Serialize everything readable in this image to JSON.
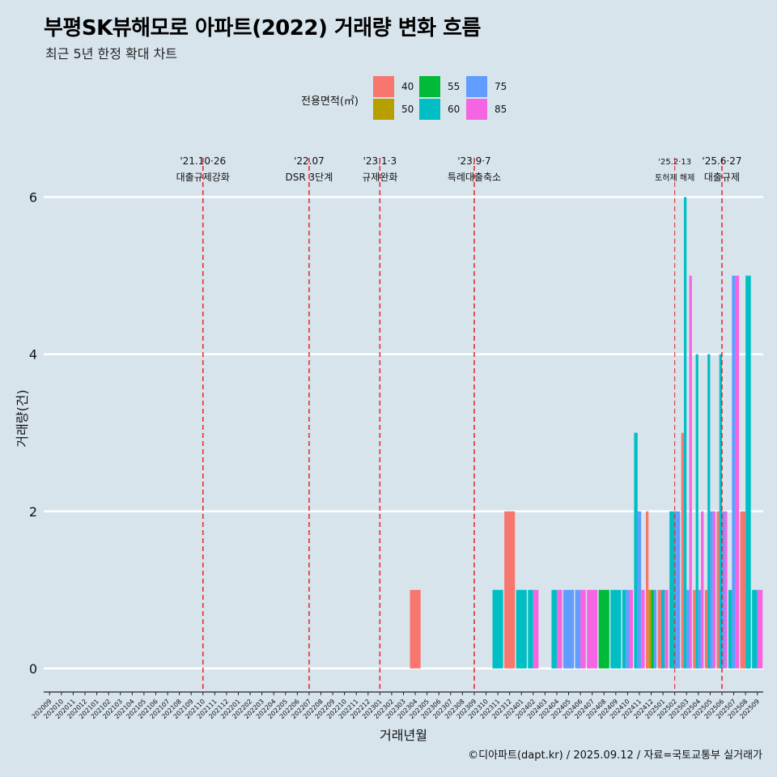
{
  "header": {
    "title": "부평SK뷰해모로 아파트(2022) 거래량 변화 흐름",
    "subtitle": "최근 5년 한정 확대 차트"
  },
  "caption": "©디아파트(dapt.kr) / 2025.09.12 / 자료=국토교통부 실거래가",
  "legend": {
    "title": "전용면적(㎡)",
    "items": [
      {
        "label": "40",
        "color": "#f8766d"
      },
      {
        "label": "50",
        "color": "#b79f00"
      },
      {
        "label": "55",
        "color": "#00ba38"
      },
      {
        "label": "60",
        "color": "#00bfc4"
      },
      {
        "label": "75",
        "color": "#619cff"
      },
      {
        "label": "85",
        "color": "#f564e3"
      }
    ]
  },
  "chart_data": {
    "type": "bar",
    "stacking": "dodge",
    "xlabel": "거래년월",
    "ylabel": "거래량(건)",
    "ylim": [
      -0.3,
      6.5
    ],
    "yticks": [
      0,
      2,
      4,
      6
    ],
    "x_ticks": [
      "202009",
      "202010",
      "202011",
      "202012",
      "202101",
      "202102",
      "202103",
      "202104",
      "202105",
      "202106",
      "202107",
      "202108",
      "202109",
      "202110",
      "202111",
      "202112",
      "202201",
      "202202",
      "202203",
      "202204",
      "202205",
      "202206",
      "202207",
      "202208",
      "202209",
      "202210",
      "202211",
      "202212",
      "202301",
      "202302",
      "202303",
      "202304",
      "202305",
      "202306",
      "202307",
      "202308",
      "202309",
      "202310",
      "202311",
      "202312",
      "202401",
      "202402",
      "202403",
      "202404",
      "202405",
      "202406",
      "202407",
      "202408",
      "202409",
      "202410",
      "202411",
      "202412",
      "202501",
      "202502",
      "202503",
      "202504",
      "202505",
      "202506",
      "202507",
      "202508",
      "202509"
    ],
    "annotations": [
      {
        "month": "202110",
        "date": "'21.10·26",
        "label": "대출규제강화"
      },
      {
        "month": "202207",
        "date": "'22.07",
        "label": "DSR 3단계"
      },
      {
        "month": "202301",
        "date": "'23.1·3",
        "label": "규제완화"
      },
      {
        "month": "202309",
        "date": "'23.9·7",
        "label": "특례대출축소"
      },
      {
        "month": "202502",
        "date": "'25.2·13",
        "label": "토허제 해제"
      },
      {
        "month": "202506",
        "date": "'25.6·27",
        "label": "대출규제"
      }
    ],
    "bars": [
      {
        "month": "202304",
        "series": [
          {
            "area": "40",
            "value": 1
          }
        ]
      },
      {
        "month": "202311",
        "series": [
          {
            "area": "60",
            "value": 1
          }
        ]
      },
      {
        "month": "202312",
        "series": [
          {
            "area": "40",
            "value": 2
          }
        ]
      },
      {
        "month": "202401",
        "series": [
          {
            "area": "60",
            "value": 1
          }
        ]
      },
      {
        "month": "202402",
        "series": [
          {
            "area": "60",
            "value": 1
          },
          {
            "area": "85",
            "value": 1
          }
        ]
      },
      {
        "month": "202404",
        "series": [
          {
            "area": "60",
            "value": 1
          },
          {
            "area": "85",
            "value": 1
          }
        ]
      },
      {
        "month": "202405",
        "series": [
          {
            "area": "75",
            "value": 1
          }
        ]
      },
      {
        "month": "202406",
        "series": [
          {
            "area": "75",
            "value": 1
          },
          {
            "area": "85",
            "value": 1
          }
        ]
      },
      {
        "month": "202407",
        "series": [
          {
            "area": "85",
            "value": 1
          }
        ]
      },
      {
        "month": "202408",
        "series": [
          {
            "area": "55",
            "value": 1
          }
        ]
      },
      {
        "month": "202409",
        "series": [
          {
            "area": "60",
            "value": 1
          }
        ]
      },
      {
        "month": "202410",
        "series": [
          {
            "area": "60",
            "value": 1
          },
          {
            "area": "75",
            "value": 1
          },
          {
            "area": "85",
            "value": 1
          }
        ]
      },
      {
        "month": "202411",
        "series": [
          {
            "area": "60",
            "value": 3
          },
          {
            "area": "75",
            "value": 2
          },
          {
            "area": "85",
            "value": 1
          }
        ]
      },
      {
        "month": "202412",
        "series": [
          {
            "area": "40",
            "value": 2
          },
          {
            "area": "50",
            "value": 1
          },
          {
            "area": "55",
            "value": 1
          },
          {
            "area": "75",
            "value": 1
          }
        ]
      },
      {
        "month": "202501",
        "series": [
          {
            "area": "40",
            "value": 1
          },
          {
            "area": "60",
            "value": 1
          },
          {
            "area": "85",
            "value": 1
          }
        ]
      },
      {
        "month": "202502",
        "series": [
          {
            "area": "60",
            "value": 2
          },
          {
            "area": "75",
            "value": 2
          }
        ]
      },
      {
        "month": "202503",
        "series": [
          {
            "area": "40",
            "value": 3
          },
          {
            "area": "60",
            "value": 6
          },
          {
            "area": "75",
            "value": 1
          },
          {
            "area": "85",
            "value": 5
          }
        ]
      },
      {
        "month": "202504",
        "series": [
          {
            "area": "40",
            "value": 1
          },
          {
            "area": "60",
            "value": 4
          },
          {
            "area": "75",
            "value": 1
          },
          {
            "area": "85",
            "value": 2
          }
        ]
      },
      {
        "month": "202505",
        "series": [
          {
            "area": "40",
            "value": 1
          },
          {
            "area": "60",
            "value": 4
          },
          {
            "area": "75",
            "value": 2
          },
          {
            "area": "85",
            "value": 2
          }
        ]
      },
      {
        "month": "202506",
        "series": [
          {
            "area": "40",
            "value": 2
          },
          {
            "area": "60",
            "value": 4
          },
          {
            "area": "75",
            "value": 2
          },
          {
            "area": "85",
            "value": 2
          }
        ]
      },
      {
        "month": "202507",
        "series": [
          {
            "area": "60",
            "value": 1
          },
          {
            "area": "75",
            "value": 5
          },
          {
            "area": "85",
            "value": 5
          }
        ]
      },
      {
        "month": "202508",
        "series": [
          {
            "area": "40",
            "value": 2
          },
          {
            "area": "60",
            "value": 5
          }
        ]
      },
      {
        "month": "202509",
        "series": [
          {
            "area": "60",
            "value": 1
          },
          {
            "area": "85",
            "value": 1
          }
        ]
      }
    ]
  }
}
